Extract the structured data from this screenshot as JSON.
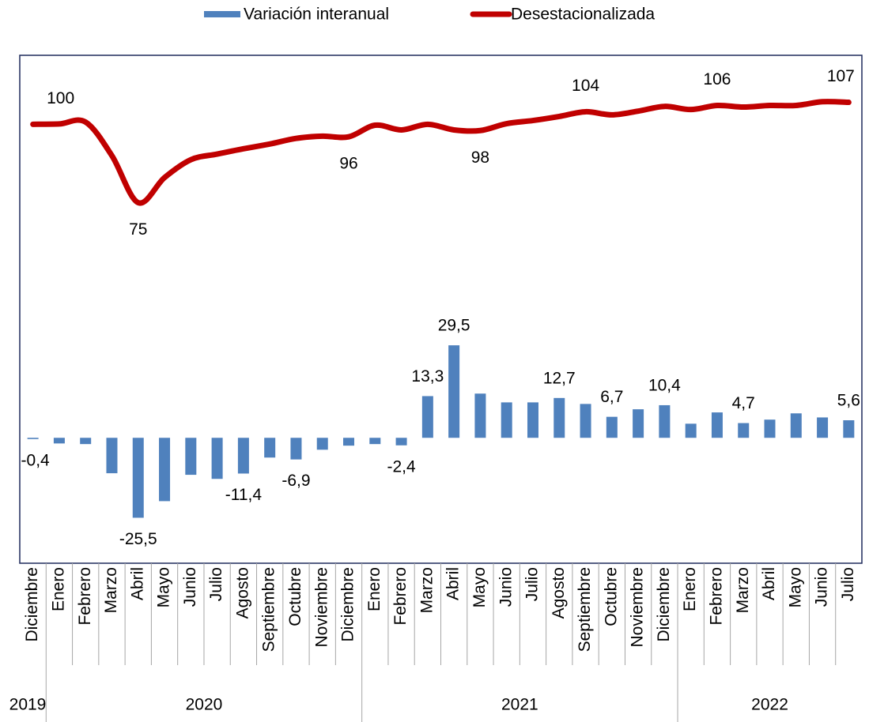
{
  "chart_data": {
    "type": "bar-line",
    "categories": [
      "Diciembre",
      "Enero",
      "Febrero",
      "Marzo",
      "Abril",
      "Mayo",
      "Junio",
      "Julio",
      "Agosto",
      "Septiembre",
      "Octubre",
      "Noviembre",
      "Diciembre",
      "Enero",
      "Febrero",
      "Marzo",
      "Abril",
      "Mayo",
      "Junio",
      "Julio",
      "Agosto",
      "Septiembre",
      "Octubre",
      "Noviembre",
      "Diciembre",
      "Enero",
      "Febrero",
      "Marzo",
      "Abril",
      "Mayo",
      "Junio",
      "Julio"
    ],
    "year_groups": [
      {
        "label": "2019",
        "span": 1
      },
      {
        "label": "2020",
        "span": 12
      },
      {
        "label": "2021",
        "span": 12
      },
      {
        "label": "2022",
        "span": 7
      }
    ],
    "ylim": [
      -40,
      122
    ],
    "series": [
      {
        "name": "Variación interanual",
        "type": "bar",
        "color": "#4f81bd",
        "values": [
          -0.4,
          -1.8,
          -2,
          -11.3,
          -25.5,
          -20.2,
          -11.8,
          -13.1,
          -11.4,
          -6.3,
          -6.9,
          -3.8,
          -2.5,
          -2,
          -2.4,
          13.3,
          29.5,
          14.1,
          11.3,
          11.3,
          12.7,
          10.8,
          6.7,
          9.1,
          10.4,
          4.5,
          8.1,
          4.7,
          5.8,
          7.8,
          6.5,
          5.6
        ],
        "value_labels": [
          "-0,4",
          null,
          null,
          null,
          "-25,5",
          null,
          null,
          null,
          "-11,4",
          null,
          "-6,9",
          null,
          null,
          null,
          "-2,4",
          "13,3",
          "29,5",
          null,
          null,
          null,
          "12,7",
          null,
          "6,7",
          null,
          "10,4",
          null,
          null,
          "4,7",
          null,
          null,
          null,
          "5,6"
        ]
      },
      {
        "name": "Desestacionalizada",
        "type": "line",
        "color": "#c00000",
        "values": [
          100,
          100.1,
          100.7,
          90,
          75,
          83,
          88.7,
          90.5,
          92.2,
          93.7,
          95.5,
          96.2,
          96,
          99.7,
          98.2,
          100,
          98.2,
          98,
          100.2,
          101.2,
          102.5,
          104,
          103,
          104.2,
          105.7,
          104.7,
          106,
          105.5,
          106,
          106,
          107.2,
          107
        ],
        "value_labels": [
          "100",
          null,
          null,
          null,
          "75",
          null,
          null,
          null,
          null,
          null,
          null,
          null,
          "96",
          null,
          null,
          null,
          null,
          "98",
          null,
          null,
          null,
          "104",
          null,
          null,
          null,
          null,
          "106",
          null,
          null,
          null,
          null,
          "107"
        ]
      }
    ]
  }
}
